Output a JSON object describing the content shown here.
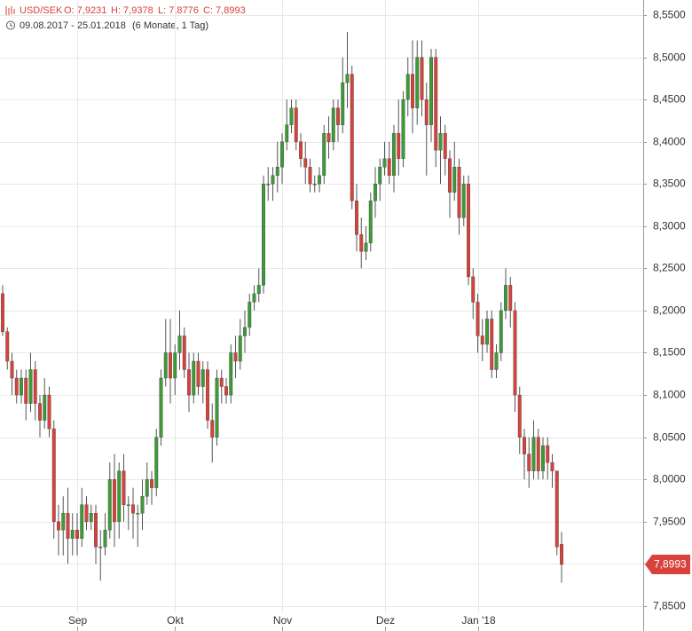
{
  "header": {
    "symbol": "USD/SEK",
    "ohlc": [
      "O: 7,9231",
      "H: 7,9378",
      "L: 7,8776",
      "C: 7,8993"
    ],
    "range": "09.08.2017 - 25.01.2018",
    "period": "(6 Monate, 1 Tag)"
  },
  "chart_data": {
    "type": "candlestick",
    "categories": [
      null,
      null,
      null,
      null,
      null,
      null,
      null,
      null,
      null,
      null,
      null,
      null,
      null,
      null,
      null,
      null,
      "Sep",
      null,
      null,
      null,
      null,
      null,
      null,
      null,
      null,
      null,
      null,
      null,
      null,
      null,
      null,
      null,
      null,
      null,
      null,
      null,
      null,
      "Okt",
      null,
      null,
      null,
      null,
      null,
      null,
      null,
      null,
      null,
      null,
      null,
      null,
      null,
      null,
      null,
      null,
      null,
      null,
      null,
      null,
      null,
      null,
      "Nov",
      null,
      null,
      null,
      null,
      null,
      null,
      null,
      null,
      null,
      null,
      null,
      null,
      null,
      null,
      null,
      null,
      null,
      null,
      null,
      null,
      null,
      "Dez",
      null,
      null,
      null,
      null,
      null,
      null,
      null,
      null,
      null,
      null,
      null,
      null,
      null,
      null,
      null,
      null,
      null,
      null,
      null,
      "Jan '18",
      null,
      null,
      null,
      null,
      null,
      null,
      null,
      null,
      null,
      null,
      null,
      null,
      null,
      null,
      null,
      null,
      null,
      null
    ],
    "open": [
      8.22,
      8.175,
      8.14,
      8.12,
      8.1,
      8.12,
      8.09,
      8.13,
      8.09,
      8.07,
      8.1,
      8.06,
      7.95,
      7.94,
      7.96,
      7.93,
      7.94,
      7.93,
      7.97,
      7.95,
      7.96,
      7.92,
      7.92,
      7.94,
      8.0,
      7.95,
      8.01,
      7.97,
      7.97,
      7.96,
      7.96,
      7.98,
      8.0,
      7.99,
      8.05,
      8.12,
      8.15,
      8.12,
      8.15,
      8.17,
      8.13,
      8.1,
      8.14,
      8.11,
      8.13,
      8.07,
      8.05,
      8.12,
      8.11,
      8.1,
      8.15,
      8.14,
      8.17,
      8.18,
      8.21,
      8.22,
      8.23,
      8.35,
      8.35,
      8.36,
      8.37,
      8.4,
      8.42,
      8.44,
      8.4,
      8.38,
      8.37,
      8.35,
      8.35,
      8.36,
      8.41,
      8.4,
      8.44,
      8.42,
      8.47,
      8.48,
      8.33,
      8.29,
      8.27,
      8.28,
      8.33,
      8.35,
      8.37,
      8.38,
      8.36,
      8.41,
      8.38,
      8.45,
      8.48,
      8.44,
      8.5,
      8.45,
      8.42,
      8.5,
      8.39,
      8.41,
      8.38,
      8.34,
      8.37,
      8.31,
      8.35,
      8.24,
      8.21,
      8.17,
      8.16,
      8.19,
      8.13,
      8.15,
      8.2,
      8.23,
      8.2,
      8.1,
      8.05,
      8.03,
      8.01,
      8.05,
      8.01,
      8.04,
      8.02,
      8.01,
      7.9231
    ],
    "high": [
      8.23,
      8.18,
      8.15,
      8.13,
      8.13,
      8.13,
      8.15,
      8.14,
      8.1,
      8.12,
      8.11,
      8.07,
      7.97,
      7.98,
      7.99,
      7.96,
      7.96,
      7.99,
      7.98,
      7.97,
      7.97,
      7.94,
      7.96,
      8.02,
      8.03,
      8.02,
      8.03,
      7.98,
      7.99,
      7.97,
      8.0,
      8.02,
      8.01,
      8.06,
      8.13,
      8.19,
      8.19,
      8.16,
      8.2,
      8.18,
      8.15,
      8.15,
      8.15,
      8.14,
      8.14,
      8.09,
      8.13,
      8.13,
      8.12,
      8.16,
      8.17,
      8.19,
      8.2,
      8.22,
      8.23,
      8.25,
      8.36,
      8.37,
      8.37,
      8.4,
      8.41,
      8.45,
      8.45,
      8.45,
      8.41,
      8.4,
      8.38,
      8.36,
      8.37,
      8.42,
      8.43,
      8.45,
      8.45,
      8.5,
      8.53,
      8.49,
      8.35,
      8.31,
      8.3,
      8.34,
      8.37,
      8.38,
      8.4,
      8.4,
      8.42,
      8.45,
      8.46,
      8.5,
      8.52,
      8.52,
      8.52,
      8.47,
      8.51,
      8.51,
      8.43,
      8.42,
      8.39,
      8.4,
      8.38,
      8.36,
      8.36,
      8.25,
      8.22,
      8.19,
      8.2,
      8.2,
      8.16,
      8.21,
      8.25,
      8.24,
      8.21,
      8.11,
      8.06,
      8.05,
      8.07,
      8.06,
      8.05,
      8.05,
      8.03,
      8.01,
      7.9378
    ],
    "low": [
      8.17,
      8.13,
      8.1,
      8.09,
      8.09,
      8.07,
      8.08,
      8.07,
      8.05,
      8.06,
      8.05,
      7.93,
      7.91,
      7.91,
      7.9,
      7.91,
      7.91,
      7.92,
      7.94,
      7.94,
      7.9,
      7.88,
      7.91,
      7.93,
      7.92,
      7.93,
      7.95,
      7.94,
      7.93,
      7.92,
      7.94,
      7.97,
      7.97,
      7.98,
      8.04,
      8.11,
      8.09,
      8.1,
      8.13,
      8.12,
      8.08,
      8.09,
      8.1,
      8.09,
      8.06,
      8.02,
      8.04,
      8.09,
      8.09,
      8.09,
      8.12,
      8.13,
      8.15,
      8.17,
      8.2,
      8.21,
      8.22,
      8.33,
      8.33,
      8.34,
      8.35,
      8.39,
      8.41,
      8.39,
      8.37,
      8.35,
      8.34,
      8.34,
      8.34,
      8.35,
      8.38,
      8.39,
      8.4,
      8.41,
      8.44,
      8.32,
      8.27,
      8.25,
      8.26,
      8.27,
      8.31,
      8.33,
      8.36,
      8.35,
      8.34,
      8.36,
      8.37,
      8.43,
      8.41,
      8.42,
      8.43,
      8.36,
      8.4,
      8.37,
      8.35,
      8.36,
      8.31,
      8.33,
      8.29,
      8.3,
      8.23,
      8.19,
      8.15,
      8.14,
      8.15,
      8.12,
      8.12,
      8.14,
      8.19,
      8.18,
      8.08,
      8.03,
      8.0,
      7.99,
      8.0,
      8.0,
      8.0,
      8.0,
      7.99,
      7.91,
      7.8776
    ],
    "close": [
      8.175,
      8.14,
      8.12,
      8.1,
      8.12,
      8.09,
      8.13,
      8.09,
      8.07,
      8.1,
      8.06,
      7.95,
      7.94,
      7.96,
      7.93,
      7.94,
      7.93,
      7.97,
      7.95,
      7.96,
      7.92,
      7.92,
      7.94,
      8.0,
      7.95,
      8.01,
      7.97,
      7.97,
      7.96,
      7.96,
      7.98,
      8.0,
      7.99,
      8.05,
      8.12,
      8.15,
      8.12,
      8.15,
      8.17,
      8.13,
      8.1,
      8.14,
      8.11,
      8.13,
      8.07,
      8.05,
      8.12,
      8.11,
      8.1,
      8.15,
      8.14,
      8.17,
      8.18,
      8.21,
      8.22,
      8.23,
      8.35,
      8.35,
      8.36,
      8.37,
      8.4,
      8.42,
      8.44,
      8.4,
      8.38,
      8.37,
      8.35,
      8.35,
      8.36,
      8.41,
      8.4,
      8.44,
      8.42,
      8.47,
      8.48,
      8.33,
      8.29,
      8.27,
      8.28,
      8.33,
      8.35,
      8.37,
      8.38,
      8.36,
      8.41,
      8.38,
      8.45,
      8.48,
      8.44,
      8.5,
      8.45,
      8.42,
      8.5,
      8.39,
      8.41,
      8.38,
      8.34,
      8.37,
      8.31,
      8.35,
      8.24,
      8.21,
      8.17,
      8.16,
      8.19,
      8.13,
      8.15,
      8.2,
      8.23,
      8.2,
      8.1,
      8.05,
      8.03,
      8.01,
      8.05,
      8.01,
      8.04,
      8.02,
      8.01,
      7.92,
      7.8993
    ],
    "up_color": "#3d9b35",
    "down_color": "#d9413b",
    "last_price": {
      "value": 7.8993,
      "label": "7,8993"
    },
    "ylim": [
      7.8204,
      8.5679
    ],
    "yticks": [
      {
        "value": 7.85,
        "label": "7,8500"
      },
      {
        "value": 7.9,
        "label": "7,9000"
      },
      {
        "value": 7.95,
        "label": "7,9500"
      },
      {
        "value": 8.0,
        "label": "8,0000"
      },
      {
        "value": 8.05,
        "label": "8,0500"
      },
      {
        "value": 8.1,
        "label": "8,1000"
      },
      {
        "value": 8.15,
        "label": "8,1500"
      },
      {
        "value": 8.2,
        "label": "8,2000"
      },
      {
        "value": 8.25,
        "label": "8,2500"
      },
      {
        "value": 8.3,
        "label": "8,3000"
      },
      {
        "value": 8.35,
        "label": "8,3500"
      },
      {
        "value": 8.4,
        "label": "8,4000"
      },
      {
        "value": 8.45,
        "label": "8,4500"
      },
      {
        "value": 8.5,
        "label": "8,5000"
      },
      {
        "value": 8.55,
        "label": "8,5500"
      }
    ],
    "grid": true
  }
}
